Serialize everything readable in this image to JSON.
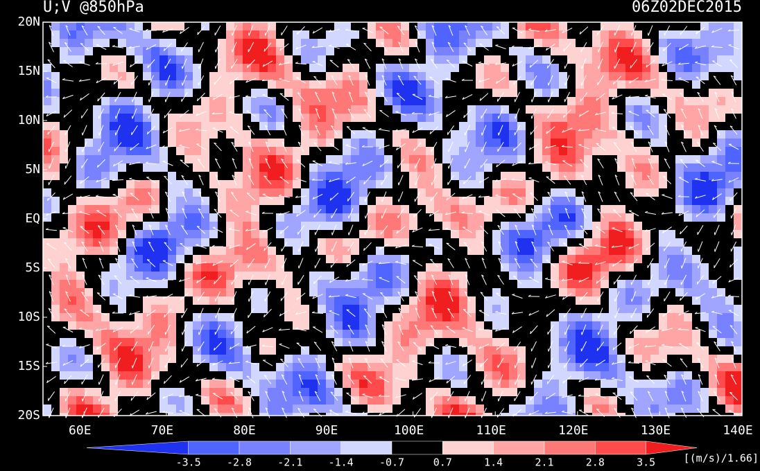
{
  "chart_data": {
    "type": "map",
    "title": "U;V @850hPa",
    "timestamp": "06Z02DEC2015",
    "xlim": [
      55,
      140
    ],
    "ylim": [
      -20,
      20
    ],
    "xticks": [
      {
        "value": 60,
        "label": "60E"
      },
      {
        "value": 70,
        "label": "70E"
      },
      {
        "value": 80,
        "label": "80E"
      },
      {
        "value": 90,
        "label": "90E"
      },
      {
        "value": 100,
        "label": "100E"
      },
      {
        "value": 110,
        "label": "110E"
      },
      {
        "value": 120,
        "label": "120E"
      },
      {
        "value": 130,
        "label": "130E"
      },
      {
        "value": 140,
        "label": "140E"
      }
    ],
    "yticks": [
      {
        "value": 20,
        "label": "20N"
      },
      {
        "value": 15,
        "label": "15N"
      },
      {
        "value": 10,
        "label": "10N"
      },
      {
        "value": 5,
        "label": "5N"
      },
      {
        "value": 0,
        "label": "EQ"
      },
      {
        "value": -5,
        "label": "5S"
      },
      {
        "value": -10,
        "label": "10S"
      },
      {
        "value": -15,
        "label": "15S"
      },
      {
        "value": -20,
        "label": "20S"
      }
    ],
    "colorbar": {
      "levels": [
        -3.5,
        -2.8,
        -2.1,
        -1.4,
        -0.7,
        0.7,
        1.4,
        2.1,
        2.8,
        3.5
      ],
      "colors": [
        "#1e32f0",
        "#5064ff",
        "#7882ff",
        "#a0a5ff",
        "#d2d7ff",
        "#000000",
        "#ffd2d2",
        "#ffa5a5",
        "#ff7878",
        "#ff4b4b",
        "#f01e1e"
      ],
      "unit": "[(m/s)/1.66]"
    }
  }
}
